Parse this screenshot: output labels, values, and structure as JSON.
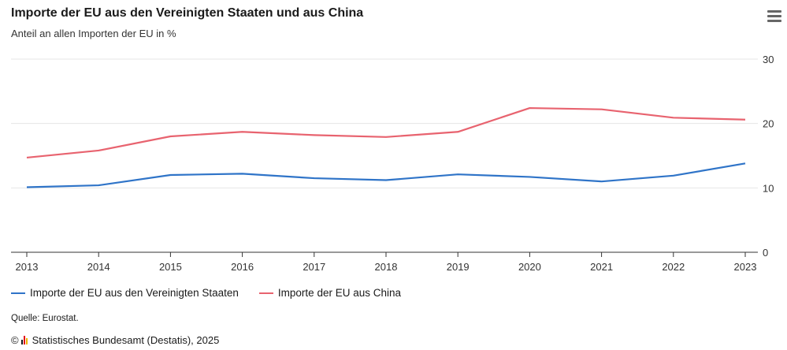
{
  "header": {
    "title": "Importe der EU aus den Vereinigten Staaten und aus China",
    "subtitle": "Anteil an allen Importen der EU in %",
    "menu_icon": "hamburger-menu-icon"
  },
  "chart_data": {
    "type": "line",
    "title": "Importe der EU aus den Vereinigten Staaten und aus China",
    "subtitle": "Anteil an allen Importen der EU in %",
    "x": [
      "2013",
      "2014",
      "2015",
      "2016",
      "2017",
      "2018",
      "2019",
      "2020",
      "2021",
      "2022",
      "2023"
    ],
    "series": [
      {
        "name": "Importe der EU aus den Vereinigten Staaten",
        "color": "#2f74c8",
        "values": [
          10.1,
          10.4,
          12.0,
          12.2,
          11.5,
          11.2,
          12.1,
          11.7,
          11.0,
          11.9,
          13.8
        ]
      },
      {
        "name": "Importe der EU aus China",
        "color": "#e8636f",
        "values": [
          14.7,
          15.8,
          18.0,
          18.7,
          18.2,
          17.9,
          18.7,
          22.4,
          22.2,
          20.9,
          20.6
        ]
      }
    ],
    "y_ticks": [
      0,
      10,
      20,
      30
    ],
    "ylim": [
      0,
      30
    ],
    "y_axis_side": "right",
    "grid": true,
    "legend_position": "bottom-left"
  },
  "footer": {
    "source": "Quelle: Eurostat.",
    "copyright_symbol": "©",
    "publisher": "Statistisches Bundesamt (Destatis), 2025"
  }
}
